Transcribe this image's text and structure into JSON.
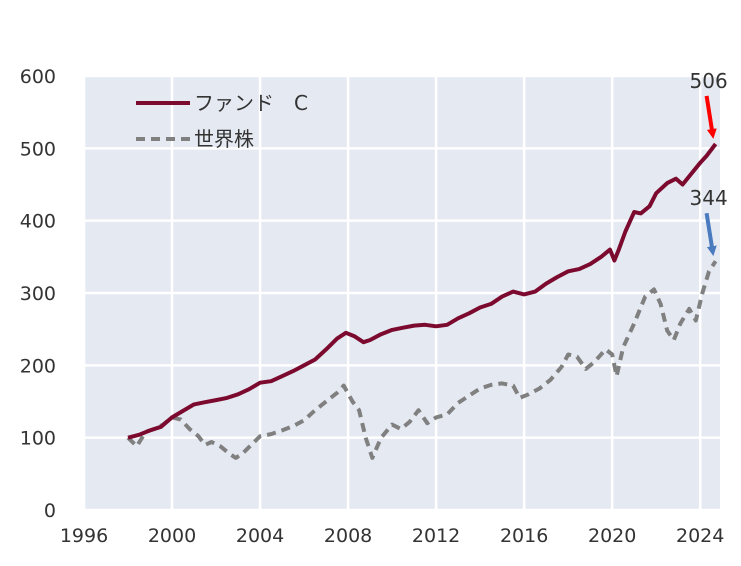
{
  "chart_data": {
    "type": "line",
    "title": "",
    "xlabel": "",
    "ylabel": "",
    "xlim": [
      1996,
      2024.9
    ],
    "ylim": [
      0,
      600
    ],
    "xticks": [
      1996,
      2000,
      2004,
      2008,
      2012,
      2016,
      2020,
      2024
    ],
    "yticks": [
      0,
      100,
      200,
      300,
      400,
      500,
      600
    ],
    "grid": true,
    "legend_position": "top-left",
    "series": [
      {
        "name": "ファンド　C",
        "color": "#7b0a2e",
        "style": "solid",
        "points": [
          [
            1998.0,
            100
          ],
          [
            1998.5,
            104
          ],
          [
            1999.0,
            110
          ],
          [
            1999.5,
            115
          ],
          [
            2000.0,
            128
          ],
          [
            2000.5,
            137
          ],
          [
            2001.0,
            146
          ],
          [
            2001.5,
            149
          ],
          [
            2002.0,
            152
          ],
          [
            2002.5,
            155
          ],
          [
            2003.0,
            160
          ],
          [
            2003.5,
            167
          ],
          [
            2004.0,
            176
          ],
          [
            2004.5,
            178
          ],
          [
            2005.0,
            185
          ],
          [
            2005.5,
            192
          ],
          [
            2006.0,
            200
          ],
          [
            2006.5,
            208
          ],
          [
            2007.0,
            222
          ],
          [
            2007.5,
            237
          ],
          [
            2007.9,
            245
          ],
          [
            2008.3,
            240
          ],
          [
            2008.7,
            232
          ],
          [
            2009.0,
            235
          ],
          [
            2009.5,
            243
          ],
          [
            2010.0,
            249
          ],
          [
            2010.5,
            252
          ],
          [
            2011.0,
            255
          ],
          [
            2011.5,
            256
          ],
          [
            2012.0,
            254
          ],
          [
            2012.5,
            256
          ],
          [
            2013.0,
            265
          ],
          [
            2013.5,
            272
          ],
          [
            2014.0,
            280
          ],
          [
            2014.5,
            285
          ],
          [
            2015.0,
            295
          ],
          [
            2015.5,
            302
          ],
          [
            2016.0,
            298
          ],
          [
            2016.5,
            302
          ],
          [
            2017.0,
            313
          ],
          [
            2017.5,
            322
          ],
          [
            2018.0,
            330
          ],
          [
            2018.5,
            333
          ],
          [
            2019.0,
            340
          ],
          [
            2019.5,
            350
          ],
          [
            2019.9,
            360
          ],
          [
            2020.1,
            345
          ],
          [
            2020.3,
            360
          ],
          [
            2020.6,
            385
          ],
          [
            2021.0,
            412
          ],
          [
            2021.3,
            410
          ],
          [
            2021.7,
            420
          ],
          [
            2022.0,
            438
          ],
          [
            2022.5,
            452
          ],
          [
            2022.9,
            458
          ],
          [
            2023.2,
            450
          ],
          [
            2023.6,
            465
          ],
          [
            2024.0,
            480
          ],
          [
            2024.3,
            490
          ],
          [
            2024.7,
            506
          ]
        ]
      },
      {
        "name": "世界株",
        "color": "#808080",
        "style": "dashed",
        "points": [
          [
            1998.0,
            100
          ],
          [
            1998.4,
            88
          ],
          [
            1998.8,
            108
          ],
          [
            1999.2,
            112
          ],
          [
            1999.6,
            118
          ],
          [
            2000.0,
            128
          ],
          [
            2000.4,
            125
          ],
          [
            2000.8,
            112
          ],
          [
            2001.2,
            102
          ],
          [
            2001.5,
            90
          ],
          [
            2001.8,
            94
          ],
          [
            2002.2,
            88
          ],
          [
            2002.6,
            78
          ],
          [
            2002.9,
            72
          ],
          [
            2003.2,
            78
          ],
          [
            2003.6,
            90
          ],
          [
            2004.0,
            102
          ],
          [
            2004.5,
            105
          ],
          [
            2005.0,
            110
          ],
          [
            2005.5,
            116
          ],
          [
            2006.0,
            124
          ],
          [
            2006.5,
            138
          ],
          [
            2007.0,
            150
          ],
          [
            2007.5,
            162
          ],
          [
            2007.8,
            172
          ],
          [
            2008.2,
            150
          ],
          [
            2008.5,
            138
          ],
          [
            2008.8,
            100
          ],
          [
            2009.1,
            72
          ],
          [
            2009.5,
            100
          ],
          [
            2010.0,
            118
          ],
          [
            2010.4,
            112
          ],
          [
            2010.8,
            122
          ],
          [
            2011.2,
            138
          ],
          [
            2011.6,
            120
          ],
          [
            2012.0,
            128
          ],
          [
            2012.5,
            132
          ],
          [
            2013.0,
            148
          ],
          [
            2013.5,
            158
          ],
          [
            2014.0,
            168
          ],
          [
            2014.5,
            173
          ],
          [
            2015.0,
            175
          ],
          [
            2015.5,
            172
          ],
          [
            2015.8,
            155
          ],
          [
            2016.2,
            160
          ],
          [
            2016.7,
            168
          ],
          [
            2017.2,
            180
          ],
          [
            2017.7,
            198
          ],
          [
            2018.0,
            215
          ],
          [
            2018.4,
            212
          ],
          [
            2018.8,
            195
          ],
          [
            2019.2,
            205
          ],
          [
            2019.7,
            222
          ],
          [
            2020.0,
            215
          ],
          [
            2020.2,
            185
          ],
          [
            2020.5,
            225
          ],
          [
            2021.0,
            258
          ],
          [
            2021.5,
            295
          ],
          [
            2021.9,
            305
          ],
          [
            2022.2,
            285
          ],
          [
            2022.5,
            248
          ],
          [
            2022.8,
            235
          ],
          [
            2023.1,
            258
          ],
          [
            2023.5,
            278
          ],
          [
            2023.8,
            262
          ],
          [
            2024.1,
            300
          ],
          [
            2024.4,
            330
          ],
          [
            2024.7,
            344
          ]
        ]
      }
    ],
    "annotations": [
      {
        "text": "506",
        "value": 506,
        "color": "#ff0000"
      },
      {
        "text": "344",
        "value": 344,
        "color": "#4a7bbf"
      }
    ]
  },
  "colors": {
    "plot_background": "#e5e9f2",
    "grid": "#ffffff"
  }
}
